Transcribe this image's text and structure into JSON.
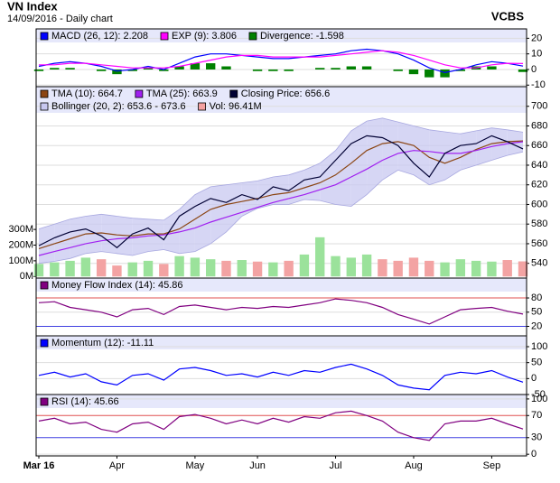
{
  "header": {
    "title": "VN Index",
    "subtitle": "14/09/2016 - Daily chart",
    "source": "VCBS"
  },
  "chart_data": [
    {
      "type": "line",
      "ylim": [
        -11,
        26
      ],
      "yticks": [
        20,
        10,
        0,
        -10
      ],
      "grid": true,
      "series": [
        {
          "name": "MACD (26, 12): 2.208",
          "type": "line",
          "color": "#0000ff",
          "values": [
            2,
            4,
            5,
            4,
            2,
            -1,
            0,
            2,
            0,
            4,
            8,
            10,
            10,
            9,
            8,
            7,
            7,
            8,
            9,
            10,
            12,
            13,
            12,
            10,
            6,
            1,
            -2,
            0,
            3,
            5,
            4,
            2.208
          ]
        },
        {
          "name": "EXP (9): 3.806",
          "type": "line",
          "color": "#ff00ff",
          "values": [
            3,
            3,
            4,
            4,
            3,
            2,
            1,
            1,
            1,
            2,
            4,
            6,
            8,
            9,
            9,
            8,
            8,
            8,
            8,
            9,
            10,
            11,
            12,
            11,
            9,
            6,
            3,
            1,
            1,
            3,
            4,
            3.806
          ]
        },
        {
          "name": "Divergence: -1.598",
          "type": "bar",
          "color": "#008000",
          "values": [
            -1,
            1,
            1,
            0,
            -1,
            -3,
            -1,
            1,
            -1,
            2,
            4,
            4,
            2,
            0,
            -1,
            -1,
            -1,
            0,
            1,
            1,
            2,
            2,
            0,
            -1,
            -3,
            -5,
            -5,
            -1,
            2,
            2,
            0,
            -1.598
          ]
        }
      ]
    },
    {
      "type": "line",
      "ylim": [
        525,
        720
      ],
      "yticks": [
        700,
        680,
        660,
        640,
        620,
        600,
        580,
        560,
        540
      ],
      "grid": true,
      "y2lim": [
        -10,
        1210
      ],
      "y2ticks": [
        {
          "value": 300,
          "label": "300M"
        },
        {
          "value": 200,
          "label": "200M"
        },
        {
          "value": 100,
          "label": "100M"
        },
        {
          "value": 0,
          "label": "0M"
        }
      ],
      "series": [
        {
          "name": "TMA (10): 664.7",
          "type": "line",
          "color": "#8b4513",
          "values": [
            555,
            560,
            565,
            570,
            571,
            569,
            568,
            570,
            570,
            575,
            585,
            595,
            600,
            603,
            606,
            610,
            612,
            617,
            622,
            630,
            642,
            655,
            662,
            664,
            660,
            648,
            642,
            648,
            656,
            662,
            664,
            664.7
          ]
        },
        {
          "name": "TMA (25): 663.9",
          "type": "line",
          "color": "#a020f0",
          "values": [
            548,
            552,
            556,
            560,
            563,
            565,
            566,
            568,
            569,
            572,
            576,
            582,
            587,
            592,
            597,
            602,
            606,
            610,
            615,
            620,
            628,
            636,
            645,
            652,
            655,
            654,
            652,
            652,
            655,
            659,
            662,
            663.9
          ]
        },
        {
          "name": "Closing Price: 656.6",
          "type": "line",
          "color": "#000033",
          "values": [
            558,
            566,
            572,
            575,
            568,
            556,
            570,
            576,
            564,
            588,
            598,
            606,
            602,
            610,
            605,
            618,
            614,
            625,
            628,
            645,
            662,
            670,
            668,
            660,
            642,
            628,
            652,
            660,
            662,
            670,
            664,
            656.6
          ]
        },
        {
          "name": "Bollinger (20, 2): 653.6 - 673.6",
          "type": "band",
          "color": "#c8c8f0",
          "upper": [
            575,
            580,
            585,
            588,
            590,
            588,
            586,
            585,
            584,
            595,
            610,
            618,
            620,
            622,
            624,
            628,
            630,
            635,
            642,
            655,
            675,
            685,
            688,
            684,
            680,
            676,
            674,
            672,
            675,
            678,
            676,
            673.6
          ],
          "lower": [
            540,
            542,
            545,
            550,
            552,
            550,
            548,
            552,
            554,
            550,
            552,
            560,
            572,
            588,
            596,
            600,
            600,
            605,
            604,
            600,
            598,
            610,
            625,
            635,
            630,
            620,
            625,
            635,
            640,
            645,
            650,
            653.6
          ]
        },
        {
          "name": "Vol: 96.41M",
          "type": "bar",
          "axis": "y2",
          "color": "#f4a0a0",
          "up_color": "#9be29b",
          "down_color": "#f3a3a3",
          "values": [
            80,
            90,
            100,
            120,
            110,
            70,
            90,
            100,
            80,
            130,
            120,
            110,
            100,
            105,
            95,
            90,
            100,
            140,
            250,
            130,
            120,
            140,
            110,
            100,
            120,
            100,
            90,
            110,
            100,
            95,
            105,
            96.41
          ]
        }
      ]
    },
    {
      "type": "line",
      "ylim": [
        0,
        122
      ],
      "yticks": [
        80,
        50,
        20
      ],
      "grid": true,
      "grid_colors": [
        "#e05050",
        "#dddddd",
        "#4040e0"
      ],
      "series": [
        {
          "name": "Money Flow Index (14): 45.86",
          "type": "line",
          "color": "#800080",
          "values": [
            70,
            72,
            60,
            55,
            50,
            40,
            55,
            58,
            45,
            62,
            65,
            60,
            55,
            60,
            58,
            62,
            60,
            65,
            70,
            78,
            75,
            70,
            60,
            45,
            35,
            25,
            40,
            55,
            58,
            60,
            52,
            45.86
          ]
        }
      ]
    },
    {
      "type": "line",
      "ylim": [
        -50,
        134
      ],
      "yticks": [
        100,
        50,
        0,
        -50
      ],
      "grid": true,
      "series": [
        {
          "name": "Momentum (12): -11.11",
          "type": "line",
          "color": "#0000ff",
          "values": [
            10,
            20,
            5,
            15,
            -10,
            -20,
            10,
            15,
            -5,
            30,
            35,
            25,
            10,
            15,
            5,
            20,
            10,
            25,
            20,
            35,
            45,
            30,
            10,
            -20,
            -30,
            -35,
            10,
            20,
            15,
            25,
            5,
            -11.11
          ]
        }
      ]
    },
    {
      "type": "line",
      "ylim": [
        -3,
        108
      ],
      "yticks": [
        100,
        70,
        30,
        0
      ],
      "grid": true,
      "grid_colors": [
        "#dddddd",
        "#e05050",
        "#4040e0",
        "#dddddd"
      ],
      "categories": [
        "Mar 16",
        null,
        null,
        null,
        null,
        "Apr",
        null,
        null,
        null,
        null,
        "May",
        null,
        null,
        null,
        "Jun",
        null,
        null,
        null,
        null,
        "Jul",
        null,
        null,
        null,
        null,
        "Aug",
        null,
        null,
        null,
        null,
        "Sep",
        null,
        null
      ],
      "series": [
        {
          "name": "RSI (14): 45.66",
          "type": "line",
          "color": "#800080",
          "values": [
            60,
            65,
            55,
            58,
            45,
            40,
            55,
            58,
            45,
            68,
            72,
            65,
            55,
            62,
            55,
            65,
            58,
            68,
            65,
            75,
            78,
            70,
            60,
            40,
            30,
            25,
            55,
            60,
            60,
            65,
            55,
            45.66
          ]
        }
      ]
    }
  ]
}
